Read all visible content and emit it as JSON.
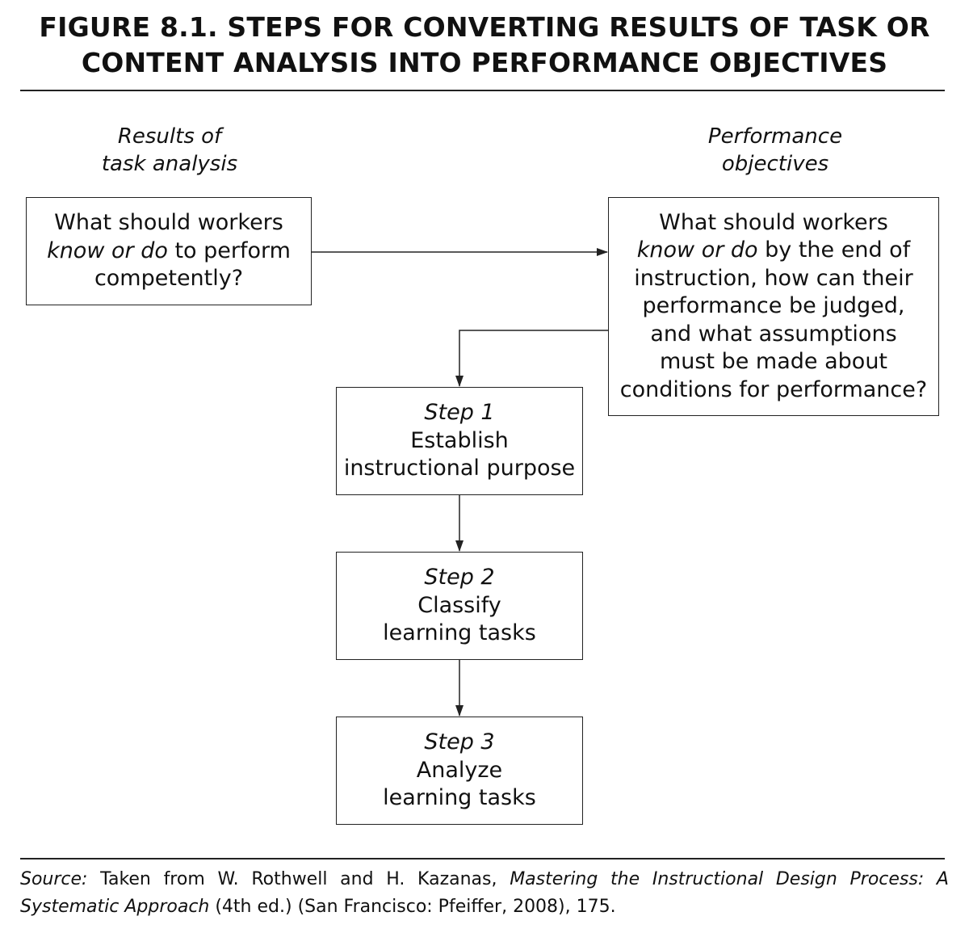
{
  "title": {
    "line1": "FIGURE 8.1. STEPS FOR CONVERTING RESULTS OF TASK OR",
    "line2": "CONTENT ANALYSIS INTO PERFORMANCE OBJECTIVES"
  },
  "labels": {
    "left": {
      "line1": "Results of",
      "line2": "task analysis"
    },
    "right": {
      "line1": "Performance",
      "line2": "objectives"
    }
  },
  "boxes": {
    "task_analysis": {
      "line1": "What should workers",
      "line2_italic": "know or do",
      "line2_rest": " to perform",
      "line3": "competently?"
    },
    "objectives": {
      "line1": "What should workers",
      "line2_italic": "know or do",
      "line2_rest": " by the end of",
      "line3": "instruction, how can their",
      "line4": "performance be judged,",
      "line5": "and what assumptions",
      "line6": "must be made about",
      "line7": "conditions for performance?"
    },
    "step1": {
      "step": "Step 1",
      "line1": "Establish",
      "line2": "instructional purpose"
    },
    "step2": {
      "step": "Step 2",
      "line1": "Classify",
      "line2": "learning tasks"
    },
    "step3": {
      "step": "Step 3",
      "line1": "Analyze",
      "line2": "learning tasks"
    }
  },
  "source": {
    "label": "Source:",
    "text1": " Taken from W. Rothwell and H. Kazanas, ",
    "book_title": "Mastering the Instructional Design Process: A Systematic Approach",
    "text2": " (4th ed.) (San Francisco: Pfeiffer, 2008), 175."
  }
}
